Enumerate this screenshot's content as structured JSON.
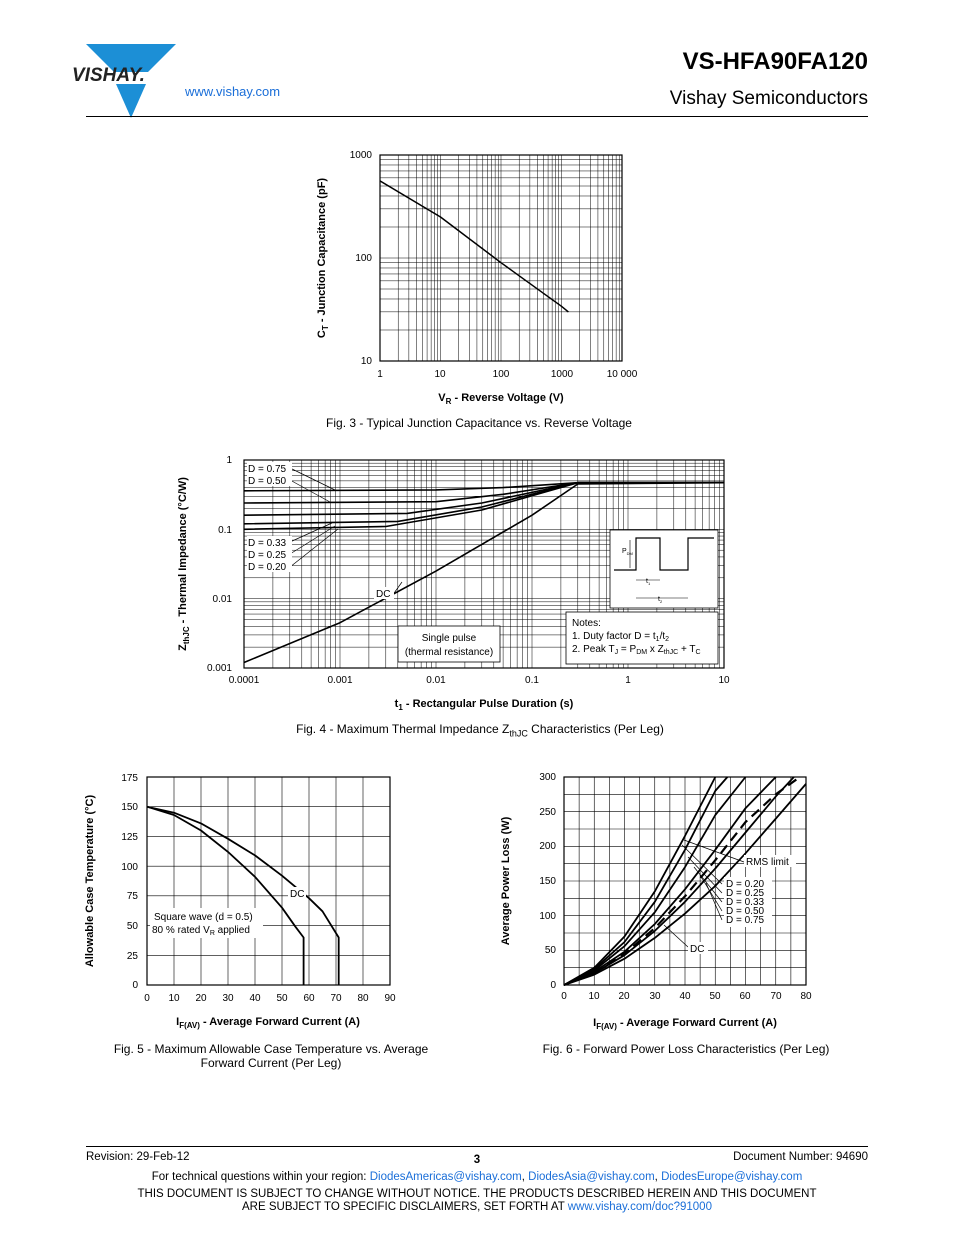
{
  "header": {
    "logo_text": "VISHAY.",
    "site_link": "www.vishay.com",
    "part_number": "VS-HFA90FA120",
    "company": "Vishay Semiconductors"
  },
  "figures": {
    "fig3": {
      "caption": "Fig. 3 - Typical Junction Capacitance vs. Reverse Voltage",
      "ylabel_a": "C",
      "ylabel_sub": "T",
      "ylabel_b": " - Junction Capacitance (pF)",
      "xlabel_a": "V",
      "xlabel_sub": "R",
      "xlabel_b": " - Reverse Voltage (V)",
      "yticks": [
        "1000",
        "100",
        "10"
      ],
      "xticks": [
        "1",
        "10",
        "100",
        "1000",
        "10 000"
      ]
    },
    "fig4": {
      "caption_a": "Fig. 4 - Maximum Thermal Impedance Z",
      "caption_sub": "thJC",
      "caption_b": " Characteristics (Per Leg)",
      "ylabel_a": "Z",
      "ylabel_sub": "thJC",
      "ylabel_b": " - Thermal Impedance (°C/W)",
      "xlabel_a": "t",
      "xlabel_sub": "1",
      "xlabel_b": " - Rectangular Pulse Duration (s)",
      "yticks": [
        "1",
        "0.1",
        "0.01",
        "0.001"
      ],
      "xticks": [
        "0.0001",
        "0.001",
        "0.01",
        "0.1",
        "1",
        "10"
      ],
      "curve_labels": [
        "D = 0.75",
        "D = 0.50",
        "D = 0.33",
        "D = 0.25",
        "D = 0.20",
        "DC"
      ],
      "single_pulse": [
        "Single pulse",
        "(thermal resistance)"
      ],
      "notes_title": "Notes:",
      "note1_a": "1. Duty factor D = t",
      "note1_sub1": "1",
      "note1_b": "/t",
      "note1_sub2": "2",
      "note2_a": "2. Peak T",
      "note2_sub1": "J",
      "note2_b": " = P",
      "note2_sub2": "DM",
      "note2_c": " x Z",
      "note2_sub3": "thJC",
      "note2_d": " + T",
      "note2_sub4": "C",
      "inset_pdm": "P",
      "inset_pdm_sub": "DM",
      "inset_t1": "t",
      "inset_t1_sub": "1",
      "inset_t2": "t",
      "inset_t2_sub": "2"
    },
    "fig5": {
      "caption_line1": "Fig. 5 - Maximum Allowable Case Temperature vs. Average",
      "caption_line2": "Forward Current (Per Leg)",
      "ylabel": "Allowable Case Temperature (°C)",
      "xlabel_a": "I",
      "xlabel_sub": "F(AV)",
      "xlabel_b": " - Average Forward Current (A)",
      "yticks": [
        "175",
        "150",
        "125",
        "100",
        "75",
        "50",
        "25",
        "0"
      ],
      "xticks": [
        "0",
        "10",
        "20",
        "30",
        "40",
        "50",
        "60",
        "70",
        "80",
        "90"
      ],
      "dc_label": "DC",
      "sq_line1": "Square wave (d = 0.5)",
      "sq_line2_a": "80 % rated V",
      "sq_line2_sub": "R",
      "sq_line2_b": "  applied"
    },
    "fig6": {
      "caption": "Fig. 6 - Forward Power Loss Characteristics (Per Leg)",
      "ylabel": "Average Power Loss (W)",
      "xlabel_a": "I",
      "xlabel_sub": "F(AV)",
      "xlabel_b": " - Average Forward Current (A)",
      "yticks": [
        "300",
        "250",
        "200",
        "150",
        "100",
        "50",
        "0"
      ],
      "xticks": [
        "0",
        "10",
        "20",
        "30",
        "40",
        "50",
        "60",
        "70",
        "80"
      ],
      "rms_label": "RMS limit",
      "curve_labels": [
        "D = 0.20",
        "D = 0.25",
        "D = 0.33",
        "D = 0.50",
        "D = 0.75"
      ],
      "dc_label": "DC"
    }
  },
  "chart_data": [
    {
      "type": "line",
      "title": "Fig. 3 - Typical Junction Capacitance vs. Reverse Voltage",
      "xlabel": "VR - Reverse Voltage (V)",
      "ylabel": "CT - Junction Capacitance (pF)",
      "xscale": "log",
      "yscale": "log",
      "xlim": [
        1,
        10000
      ],
      "ylim": [
        10,
        1000
      ],
      "grid": true,
      "series": [
        {
          "x": [
            1,
            10,
            100,
            1000,
            1300
          ],
          "y": [
            560,
            250,
            90,
            34,
            30
          ]
        }
      ]
    },
    {
      "type": "line",
      "title": "Fig. 4 - Maximum Thermal Impedance ZthJC Characteristics (Per Leg)",
      "xlabel": "t1 - Rectangular Pulse Duration (s)",
      "ylabel": "ZthJC - Thermal Impedance (°C/W)",
      "xscale": "log",
      "yscale": "log",
      "xlim": [
        0.0001,
        10
      ],
      "ylim": [
        0.001,
        1
      ],
      "grid": true,
      "series": [
        {
          "name": "D = 0.75",
          "x": [
            0.0001,
            0.01,
            0.05,
            0.3,
            10
          ],
          "y": [
            0.36,
            0.37,
            0.4,
            0.47,
            0.47
          ]
        },
        {
          "name": "D = 0.50",
          "x": [
            0.0001,
            0.01,
            0.05,
            0.3,
            10
          ],
          "y": [
            0.24,
            0.25,
            0.32,
            0.47,
            0.47
          ]
        },
        {
          "name": "D = 0.33",
          "x": [
            0.0001,
            0.005,
            0.03,
            0.3,
            10
          ],
          "y": [
            0.16,
            0.17,
            0.24,
            0.47,
            0.47
          ]
        },
        {
          "name": "D = 0.25",
          "x": [
            0.0001,
            0.004,
            0.03,
            0.3,
            10
          ],
          "y": [
            0.12,
            0.13,
            0.21,
            0.47,
            0.47
          ]
        },
        {
          "name": "D = 0.20",
          "x": [
            0.0001,
            0.003,
            0.03,
            0.3,
            10
          ],
          "y": [
            0.1,
            0.11,
            0.19,
            0.47,
            0.47
          ]
        },
        {
          "name": "DC",
          "x": [
            0.0001,
            0.001,
            0.01,
            0.1,
            0.3,
            10
          ],
          "y": [
            0.0012,
            0.0045,
            0.025,
            0.16,
            0.45,
            0.47
          ]
        }
      ]
    },
    {
      "type": "line",
      "title": "Fig. 5 - Maximum Allowable Case Temperature vs. Average Forward Current (Per Leg)",
      "xlabel": "IF(AV) - Average Forward Current (A)",
      "ylabel": "Allowable Case Temperature (°C)",
      "xlim": [
        0,
        90
      ],
      "ylim": [
        0,
        175
      ],
      "grid": true,
      "series": [
        {
          "name": "DC",
          "x": [
            0,
            10,
            20,
            30,
            40,
            50,
            60,
            65,
            71,
            71
          ],
          "y": [
            150,
            145,
            136,
            123,
            109,
            92,
            73,
            62,
            40,
            0
          ]
        },
        {
          "name": "Square wave (d = 0.5)",
          "x": [
            0,
            10,
            20,
            30,
            40,
            50,
            55,
            58,
            58
          ],
          "y": [
            150,
            143,
            130,
            112,
            91,
            65,
            49,
            40,
            0
          ]
        }
      ]
    },
    {
      "type": "line",
      "title": "Fig. 6 - Forward Power Loss Characteristics (Per Leg)",
      "xlabel": "IF(AV) - Average Forward Current (A)",
      "ylabel": "Average Power Loss (W)",
      "xlim": [
        0,
        80
      ],
      "ylim": [
        0,
        300
      ],
      "grid": true,
      "series": [
        {
          "name": "D = 0.20",
          "x": [
            0,
            10,
            20,
            30,
            40,
            50
          ],
          "y": [
            0,
            25,
            70,
            135,
            215,
            300
          ]
        },
        {
          "name": "D = 0.25",
          "x": [
            0,
            10,
            20,
            30,
            40,
            50,
            54
          ],
          "y": [
            0,
            23,
            62,
            120,
            195,
            280,
            300
          ]
        },
        {
          "name": "D = 0.33",
          "x": [
            0,
            10,
            20,
            30,
            40,
            50,
            60
          ],
          "y": [
            0,
            21,
            56,
            105,
            170,
            245,
            300
          ]
        },
        {
          "name": "D = 0.50",
          "x": [
            0,
            10,
            20,
            30,
            40,
            50,
            60,
            70
          ],
          "y": [
            0,
            19,
            48,
            88,
            138,
            195,
            255,
            300
          ]
        },
        {
          "name": "D = 0.75",
          "x": [
            0,
            10,
            20,
            30,
            40,
            50,
            60,
            70,
            76
          ],
          "y": [
            0,
            17,
            43,
            78,
            120,
            168,
            220,
            272,
            300
          ]
        },
        {
          "name": "DC",
          "x": [
            0,
            10,
            20,
            30,
            40,
            50,
            60,
            70,
            80
          ],
          "y": [
            0,
            15,
            38,
            68,
            103,
            143,
            190,
            240,
            290
          ]
        },
        {
          "name": "RMS limit",
          "x": [
            0,
            10,
            20,
            30,
            40,
            50,
            60,
            70,
            78
          ],
          "y": [
            0,
            18,
            45,
            82,
            128,
            180,
            235,
            275,
            300
          ]
        }
      ]
    }
  ],
  "footer": {
    "revision": "Revision: 29-Feb-12",
    "page": "3",
    "doc_number": "Document Number: 94690",
    "contact_prefix": "For technical questions within your region: ",
    "email_americas": "DiodesAmericas@vishay.com",
    "email_asia": "DiodesAsia@vishay.com",
    "email_europe": "DiodesEurope@vishay.com",
    "sep": ", ",
    "notice_line1": "THIS DOCUMENT IS SUBJECT TO CHANGE WITHOUT NOTICE. THE PRODUCTS DESCRIBED HEREIN AND THIS DOCUMENT",
    "notice_line2_prefix": "ARE SUBJECT TO SPECIFIC DISCLAIMERS, SET FORTH AT ",
    "notice_link": "www.vishay.com/doc?91000"
  }
}
